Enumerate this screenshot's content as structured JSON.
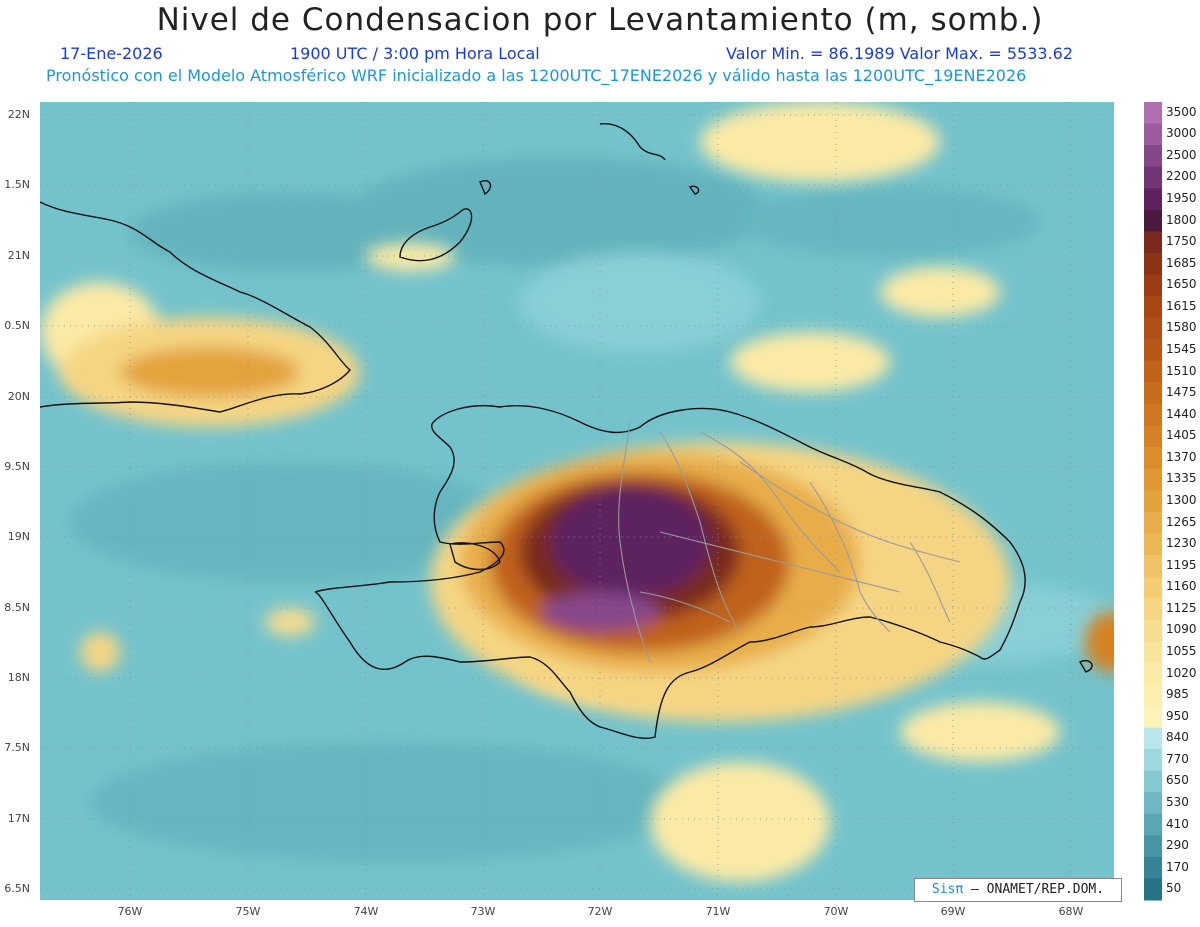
{
  "header": {
    "title": "Nivel de Condensacion por Levantamiento (m, somb.)",
    "date": "17-Ene-2026",
    "time": "1900 UTC / 3:00 pm Hora Local",
    "minmax": "Valor Min. = 86.1989  Valor Max. = 5533.62",
    "model_info": "Pronóstico con el Modelo Atmosférico WRF inicializado a las 1200UTC_17ENE2026 y válido hasta las  1200UTC_19ENE2026"
  },
  "axes": {
    "lat_labels": [
      "22N",
      "1.5N",
      "21N",
      "0.5N",
      "20N",
      "9.5N",
      "19N",
      "8.5N",
      "18N",
      "7.5N",
      "17N",
      "6.5N"
    ],
    "lon_labels": [
      "76W",
      "75W",
      "74W",
      "73W",
      "72W",
      "71W",
      "70W",
      "69W",
      "68W"
    ]
  },
  "colorbar": {
    "labels": [
      "3500",
      "3000",
      "2500",
      "2200",
      "1950",
      "1800",
      "1750",
      "1685",
      "1650",
      "1615",
      "1580",
      "1545",
      "1510",
      "1475",
      "1440",
      "1405",
      "1370",
      "1335",
      "1300",
      "1265",
      "1230",
      "1195",
      "1160",
      "1125",
      "1090",
      "1055",
      "1020",
      "985",
      "950",
      "840",
      "770",
      "650",
      "530",
      "410",
      "290",
      "170",
      "50"
    ],
    "colors": [
      "#b06fb0",
      "#9d5ca0",
      "#86478a",
      "#723575",
      "#5d2360",
      "#4b1a3e",
      "#7a2a1c",
      "#8c3316",
      "#9c3c14",
      "#a84614",
      "#b04f16",
      "#b85818",
      "#c0621a",
      "#c86c1d",
      "#cf7620",
      "#d58224",
      "#da8d2a",
      "#df9832",
      "#e3a33c",
      "#e8ad48",
      "#ecb756",
      "#f0c265",
      "#f3cc74",
      "#f5d583",
      "#f7dd90",
      "#f9e49c",
      "#fbeaa6",
      "#fcefaf",
      "#fdf3b8",
      "#b9e6ea",
      "#9fd8df",
      "#86c8d2",
      "#6fb7c4",
      "#5aa6b5",
      "#4795a6",
      "#368497",
      "#277488"
    ]
  },
  "credit": {
    "sis": "Sisπ",
    "text": "– ONAMET/REP.DOM."
  }
}
